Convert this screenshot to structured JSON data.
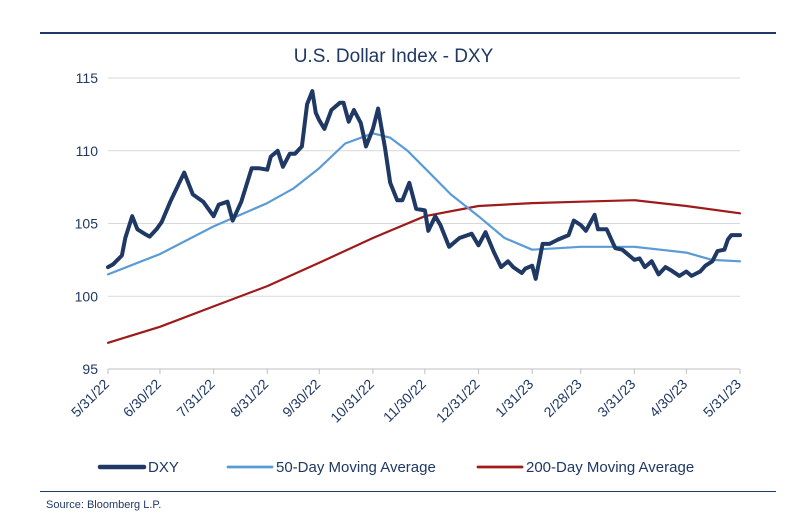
{
  "chart_data": {
    "type": "line",
    "title": "U.S. Dollar Index - DXY",
    "source": "Source: Bloomberg L.P.",
    "xlabel": "",
    "ylabel": "",
    "ylim": [
      95,
      115
    ],
    "yticks": [
      95,
      100,
      105,
      110,
      115
    ],
    "x_range": [
      "2022-05-31",
      "2023-05-31"
    ],
    "xticks": [
      "2022-05-31",
      "2022-06-30",
      "2022-07-31",
      "2022-08-31",
      "2022-09-30",
      "2022-10-31",
      "2022-11-30",
      "2022-12-31",
      "2023-01-31",
      "2023-02-28",
      "2023-03-31",
      "2023-04-30",
      "2023-05-31"
    ],
    "xtick_labels": [
      "5/31/22",
      "6/30/22",
      "7/31/22",
      "8/31/22",
      "9/30/22",
      "10/31/22",
      "11/30/22",
      "12/31/22",
      "1/31/23",
      "2/28/23",
      "3/31/23",
      "4/30/23",
      "5/31/23"
    ],
    "grid": "horizontal",
    "legend_position": "bottom",
    "series": [
      {
        "name": "DXY",
        "color": "#1f3864",
        "points": [
          [
            "2022-05-31",
            102.0
          ],
          [
            "2022-06-03",
            102.2
          ],
          [
            "2022-06-08",
            102.8
          ],
          [
            "2022-06-10",
            104.0
          ],
          [
            "2022-06-14",
            105.5
          ],
          [
            "2022-06-17",
            104.6
          ],
          [
            "2022-06-21",
            104.3
          ],
          [
            "2022-06-24",
            104.1
          ],
          [
            "2022-06-28",
            104.6
          ],
          [
            "2022-07-01",
            105.1
          ],
          [
            "2022-07-06",
            106.5
          ],
          [
            "2022-07-12",
            108.0
          ],
          [
            "2022-07-14",
            108.5
          ],
          [
            "2022-07-19",
            107.0
          ],
          [
            "2022-07-25",
            106.5
          ],
          [
            "2022-07-31",
            105.5
          ],
          [
            "2022-08-03",
            106.3
          ],
          [
            "2022-08-08",
            106.5
          ],
          [
            "2022-08-11",
            105.2
          ],
          [
            "2022-08-16",
            106.5
          ],
          [
            "2022-08-22",
            108.8
          ],
          [
            "2022-08-26",
            108.8
          ],
          [
            "2022-08-31",
            108.7
          ],
          [
            "2022-09-02",
            109.6
          ],
          [
            "2022-09-06",
            110.0
          ],
          [
            "2022-09-09",
            108.9
          ],
          [
            "2022-09-13",
            109.8
          ],
          [
            "2022-09-16",
            109.8
          ],
          [
            "2022-09-20",
            110.3
          ],
          [
            "2022-09-23",
            113.2
          ],
          [
            "2022-09-26",
            114.1
          ],
          [
            "2022-09-28",
            112.6
          ],
          [
            "2022-09-30",
            112.1
          ],
          [
            "2022-10-03",
            111.5
          ],
          [
            "2022-10-07",
            112.8
          ],
          [
            "2022-10-12",
            113.3
          ],
          [
            "2022-10-14",
            113.3
          ],
          [
            "2022-10-17",
            112.0
          ],
          [
            "2022-10-20",
            112.8
          ],
          [
            "2022-10-24",
            111.9
          ],
          [
            "2022-10-27",
            110.3
          ],
          [
            "2022-10-31",
            111.5
          ],
          [
            "2022-11-03",
            112.9
          ],
          [
            "2022-11-07",
            110.2
          ],
          [
            "2022-11-10",
            107.8
          ],
          [
            "2022-11-14",
            106.6
          ],
          [
            "2022-11-17",
            106.6
          ],
          [
            "2022-11-21",
            107.8
          ],
          [
            "2022-11-25",
            106.0
          ],
          [
            "2022-11-30",
            105.9
          ],
          [
            "2022-12-02",
            104.5
          ],
          [
            "2022-12-06",
            105.5
          ],
          [
            "2022-12-09",
            104.9
          ],
          [
            "2022-12-14",
            103.4
          ],
          [
            "2022-12-20",
            104.0
          ],
          [
            "2022-12-27",
            104.3
          ],
          [
            "2022-12-31",
            103.5
          ],
          [
            "2023-01-04",
            104.4
          ],
          [
            "2023-01-09",
            103.0
          ],
          [
            "2023-01-13",
            102.0
          ],
          [
            "2023-01-17",
            102.4
          ],
          [
            "2023-01-20",
            102.0
          ],
          [
            "2023-01-25",
            101.6
          ],
          [
            "2023-01-27",
            101.9
          ],
          [
            "2023-01-31",
            102.1
          ],
          [
            "2023-02-02",
            101.2
          ],
          [
            "2023-02-06",
            103.6
          ],
          [
            "2023-02-10",
            103.6
          ],
          [
            "2023-02-15",
            103.9
          ],
          [
            "2023-02-21",
            104.2
          ],
          [
            "2023-02-24",
            105.2
          ],
          [
            "2023-02-28",
            104.9
          ],
          [
            "2023-03-03",
            104.5
          ],
          [
            "2023-03-08",
            105.6
          ],
          [
            "2023-03-10",
            104.6
          ],
          [
            "2023-03-15",
            104.6
          ],
          [
            "2023-03-20",
            103.3
          ],
          [
            "2023-03-24",
            103.2
          ],
          [
            "2023-03-31",
            102.5
          ],
          [
            "2023-04-03",
            102.6
          ],
          [
            "2023-04-06",
            102.0
          ],
          [
            "2023-04-10",
            102.4
          ],
          [
            "2023-04-14",
            101.5
          ],
          [
            "2023-04-18",
            102.0
          ],
          [
            "2023-04-21",
            101.8
          ],
          [
            "2023-04-26",
            101.4
          ],
          [
            "2023-04-30",
            101.7
          ],
          [
            "2023-05-03",
            101.4
          ],
          [
            "2023-05-08",
            101.7
          ],
          [
            "2023-05-11",
            102.1
          ],
          [
            "2023-05-15",
            102.4
          ],
          [
            "2023-05-18",
            103.1
          ],
          [
            "2023-05-22",
            103.2
          ],
          [
            "2023-05-24",
            103.9
          ],
          [
            "2023-05-26",
            104.2
          ],
          [
            "2023-05-31",
            104.2
          ]
        ]
      },
      {
        "name": "50-Day Moving Average",
        "color": "#5b9bd5",
        "points": [
          [
            "2022-05-31",
            101.5
          ],
          [
            "2022-06-30",
            102.9
          ],
          [
            "2022-07-31",
            104.8
          ],
          [
            "2022-08-31",
            106.4
          ],
          [
            "2022-09-15",
            107.4
          ],
          [
            "2022-09-30",
            108.8
          ],
          [
            "2022-10-15",
            110.5
          ],
          [
            "2022-10-31",
            111.2
          ],
          [
            "2022-11-10",
            110.9
          ],
          [
            "2022-11-20",
            110.0
          ],
          [
            "2022-11-30",
            108.8
          ],
          [
            "2022-12-15",
            107.0
          ],
          [
            "2022-12-31",
            105.5
          ],
          [
            "2023-01-15",
            104.0
          ],
          [
            "2023-01-31",
            103.2
          ],
          [
            "2023-02-15",
            103.3
          ],
          [
            "2023-02-28",
            103.4
          ],
          [
            "2023-03-15",
            103.4
          ],
          [
            "2023-03-31",
            103.4
          ],
          [
            "2023-04-15",
            103.2
          ],
          [
            "2023-04-30",
            103.0
          ],
          [
            "2023-05-15",
            102.5
          ],
          [
            "2023-05-31",
            102.4
          ]
        ]
      },
      {
        "name": "200-Day Moving Average",
        "color": "#9e1b1b",
        "points": [
          [
            "2022-05-31",
            96.8
          ],
          [
            "2022-06-30",
            97.9
          ],
          [
            "2022-07-31",
            99.3
          ],
          [
            "2022-08-31",
            100.7
          ],
          [
            "2022-09-30",
            102.3
          ],
          [
            "2022-10-31",
            104.0
          ],
          [
            "2022-11-30",
            105.5
          ],
          [
            "2022-12-31",
            106.2
          ],
          [
            "2023-01-31",
            106.4
          ],
          [
            "2023-02-28",
            106.5
          ],
          [
            "2023-03-31",
            106.6
          ],
          [
            "2023-04-15",
            106.4
          ],
          [
            "2023-04-30",
            106.2
          ],
          [
            "2023-05-31",
            105.7
          ]
        ]
      }
    ]
  }
}
